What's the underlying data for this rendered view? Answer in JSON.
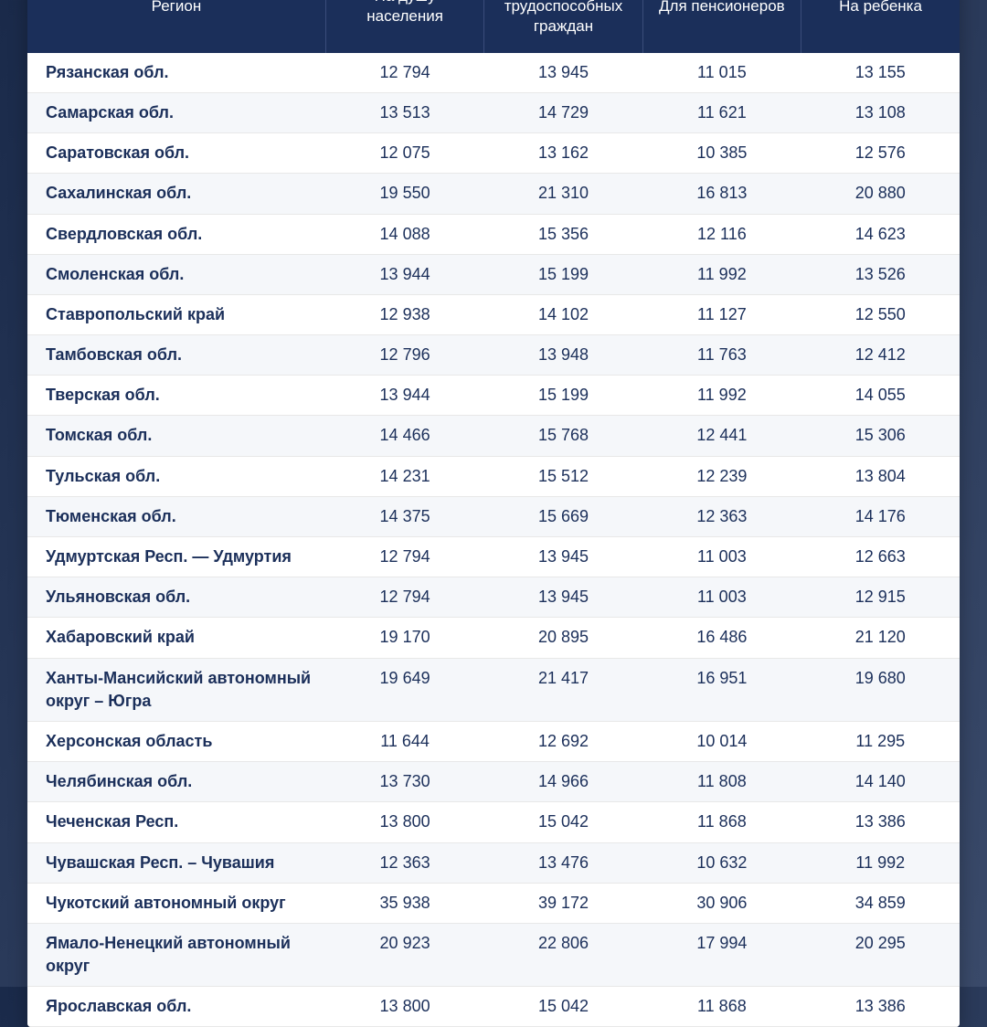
{
  "table": {
    "header_bg": "#1b2f5a",
    "header_text_color": "#ffffff",
    "row_even_bg": "#f5f7fa",
    "row_odd_bg": "#ffffff",
    "cell_text_color": "#1b2f5a",
    "border_color": "#e8e8e8",
    "columns": [
      "Регион",
      "На душу населения",
      "Для трудоспособных граждан",
      "Для пенсионеров",
      "На ребенка"
    ],
    "rows": [
      {
        "region": "Рязанская обл.",
        "v1": "12 794",
        "v2": "13 945",
        "v3": "11 015",
        "v4": "13 155"
      },
      {
        "region": "Самарская обл.",
        "v1": "13 513",
        "v2": "14 729",
        "v3": "11 621",
        "v4": "13 108"
      },
      {
        "region": "Саратовская обл.",
        "v1": "12 075",
        "v2": "13 162",
        "v3": "10 385",
        "v4": "12 576"
      },
      {
        "region": "Сахалинская обл.",
        "v1": "19 550",
        "v2": "21 310",
        "v3": "16 813",
        "v4": "20 880"
      },
      {
        "region": "Свердловская обл.",
        "v1": "14 088",
        "v2": "15 356",
        "v3": "12 116",
        "v4": "14 623"
      },
      {
        "region": "Смоленская обл.",
        "v1": "13 944",
        "v2": "15 199",
        "v3": "11 992",
        "v4": "13 526"
      },
      {
        "region": "Ставропольский край",
        "v1": "12 938",
        "v2": "14 102",
        "v3": "11 127",
        "v4": "12 550"
      },
      {
        "region": "Тамбовская обл.",
        "v1": "12 796",
        "v2": "13 948",
        "v3": "11 763",
        "v4": "12 412"
      },
      {
        "region": "Тверская обл.",
        "v1": "13 944",
        "v2": "15 199",
        "v3": "11 992",
        "v4": "14 055"
      },
      {
        "region": "Томская обл.",
        "v1": "14 466",
        "v2": "15 768",
        "v3": "12 441",
        "v4": "15 306"
      },
      {
        "region": "Тульская обл.",
        "v1": "14 231",
        "v2": "15 512",
        "v3": "12 239",
        "v4": "13 804"
      },
      {
        "region": "Тюменская обл.",
        "v1": "14 375",
        "v2": "15 669",
        "v3": "12 363",
        "v4": "14 176"
      },
      {
        "region": "Удмуртская Респ. — Удмуртия",
        "v1": "12 794",
        "v2": "13 945",
        "v3": "11 003",
        "v4": "12 663"
      },
      {
        "region": "Ульяновская обл.",
        "v1": "12 794",
        "v2": "13 945",
        "v3": "11 003",
        "v4": "12 915"
      },
      {
        "region": "Хабаровский край",
        "v1": "19 170",
        "v2": "20 895",
        "v3": "16 486",
        "v4": "21 120"
      },
      {
        "region": "Ханты-Мансийский автономный округ – Югра",
        "v1": "19 649",
        "v2": "21 417",
        "v3": "16 951",
        "v4": "19 680"
      },
      {
        "region": "Херсонская область",
        "v1": "11 644",
        "v2": "12 692",
        "v3": "10 014",
        "v4": "11 295"
      },
      {
        "region": "Челябинская обл.",
        "v1": "13 730",
        "v2": "14 966",
        "v3": "11 808",
        "v4": "14 140"
      },
      {
        "region": "Чеченская Респ.",
        "v1": "13 800",
        "v2": "15 042",
        "v3": "11 868",
        "v4": "13 386"
      },
      {
        "region": "Чувашская Респ. – Чувашия",
        "v1": "12 363",
        "v2": "13 476",
        "v3": "10 632",
        "v4": "11 992"
      },
      {
        "region": "Чукотский автономный округ",
        "v1": "35 938",
        "v2": "39 172",
        "v3": "30 906",
        "v4": "34 859"
      },
      {
        "region": "Ямало-Ненецкий автономный округ",
        "v1": "20 923",
        "v2": "22 806",
        "v3": "17 994",
        "v4": "20 295"
      },
      {
        "region": "Ярославская обл.",
        "v1": "13 800",
        "v2": "15 042",
        "v3": "11 868",
        "v4": "13 386"
      }
    ]
  }
}
